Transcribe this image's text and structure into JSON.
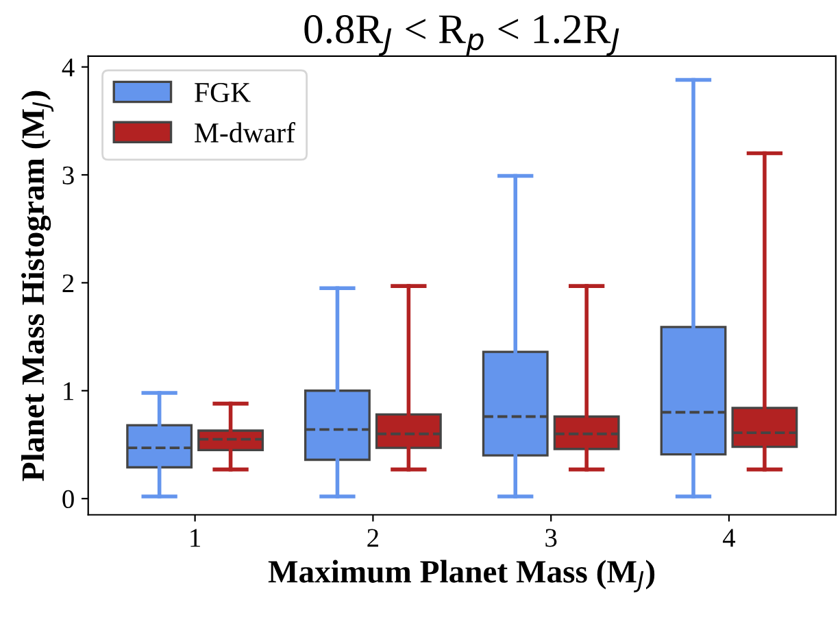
{
  "chart_data": {
    "type": "box",
    "title": "0.8R$_{J}$ < R$_{p}$ < 1.2R$_{J}$",
    "xlabel": "Maximum Planet Mass (M$_{J}$)",
    "ylabel": "Planet Mass Histogram (M$_{J}$)",
    "categories": [
      "1",
      "2",
      "3",
      "4"
    ],
    "ylim": [
      -0.15,
      4.1
    ],
    "yticks": [
      0,
      1,
      2,
      3,
      4
    ],
    "legend": "top left",
    "grid": false,
    "series": [
      {
        "name": "FGK",
        "color": "#6495ed",
        "boxes": [
          {
            "low": 0.02,
            "q1": 0.29,
            "median": 0.47,
            "q3": 0.68,
            "high": 0.98
          },
          {
            "low": 0.02,
            "q1": 0.36,
            "median": 0.64,
            "q3": 1.0,
            "high": 1.95
          },
          {
            "low": 0.02,
            "q1": 0.4,
            "median": 0.76,
            "q3": 1.36,
            "high": 2.99
          },
          {
            "low": 0.02,
            "q1": 0.41,
            "median": 0.8,
            "q3": 1.59,
            "high": 3.88
          }
        ]
      },
      {
        "name": "M-dwarf",
        "color": "#b22222",
        "boxes": [
          {
            "low": 0.27,
            "q1": 0.45,
            "median": 0.55,
            "q3": 0.63,
            "high": 0.88
          },
          {
            "low": 0.27,
            "q1": 0.47,
            "median": 0.6,
            "q3": 0.78,
            "high": 1.97
          },
          {
            "low": 0.27,
            "q1": 0.46,
            "median": 0.6,
            "q3": 0.76,
            "high": 1.97
          },
          {
            "low": 0.27,
            "q1": 0.48,
            "median": 0.61,
            "q3": 0.84,
            "high": 3.2
          }
        ]
      }
    ]
  }
}
